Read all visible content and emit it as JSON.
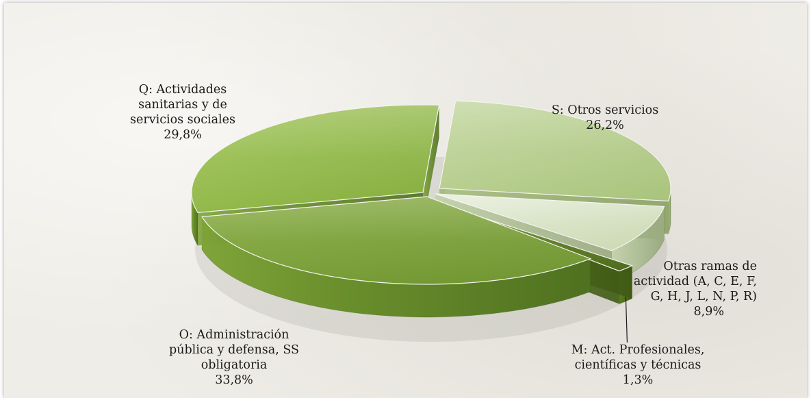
{
  "chart_data": {
    "type": "pie",
    "title": "",
    "legend": "none",
    "slices": [
      {
        "label_lines": [
          "S: Otros servicios"
        ],
        "value_label": "26,2%",
        "value": 26.2,
        "color": "#b4cc8a"
      },
      {
        "label_lines": [
          "Otras ramas de",
          "actividad (A, C, E, F,",
          "G, H, J, L, N, P, R)"
        ],
        "value_label": "8,9%",
        "value": 8.9,
        "color": "#d5e2c0"
      },
      {
        "label_lines": [
          "M: Act. Profesionales,",
          "científicas y técnicas"
        ],
        "value_label": "1,3%",
        "value": 1.3,
        "color": "#5a7a22"
      },
      {
        "label_lines": [
          "O: Administración",
          "pública y defensa, SS",
          "obligatoria"
        ],
        "value_label": "33,8%",
        "value": 33.8,
        "color": "#7da23a"
      },
      {
        "label_lines": [
          "Q: Actividades",
          "sanitarias y de",
          "servicios sociales"
        ],
        "value_label": "29,8%",
        "value": 29.8,
        "color": "#8cb443"
      }
    ]
  }
}
